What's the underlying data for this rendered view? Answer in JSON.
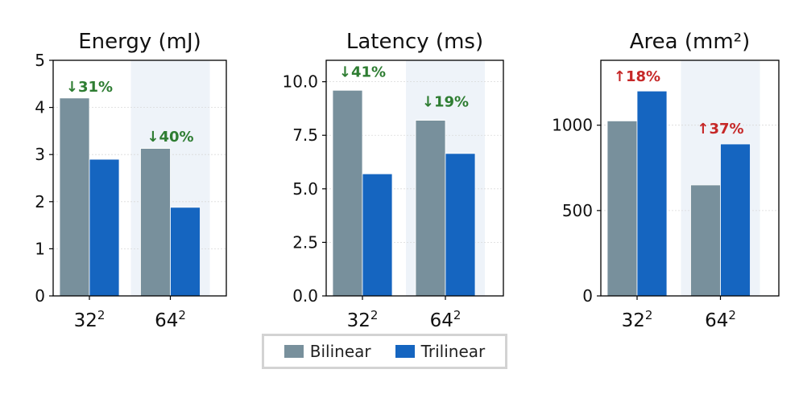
{
  "chart_data": [
    {
      "type": "bar",
      "title": "Energy (mJ)",
      "categories": [
        {
          "base": "32",
          "sup": "2"
        },
        {
          "base": "64",
          "sup": "2"
        }
      ],
      "series": [
        {
          "name": "Bilinear",
          "values": [
            4.2,
            3.13
          ]
        },
        {
          "name": "Trilinear",
          "values": [
            2.9,
            1.88
          ]
        }
      ],
      "ylim": [
        0,
        5
      ],
      "yticks": [
        0,
        1,
        2,
        3,
        4,
        5
      ],
      "ytick_labels": [
        "0",
        "1",
        "2",
        "3",
        "4",
        "5"
      ],
      "annotations": [
        {
          "category": 0,
          "text": "↓31%",
          "y": 4.45,
          "direction": "down"
        },
        {
          "category": 1,
          "text": "↓40%",
          "y": 3.4,
          "direction": "down"
        }
      ],
      "grid": true,
      "highlight_category": 1
    },
    {
      "type": "bar",
      "title": "Latency (ms)",
      "categories": [
        {
          "base": "32",
          "sup": "2"
        },
        {
          "base": "64",
          "sup": "2"
        }
      ],
      "series": [
        {
          "name": "Bilinear",
          "values": [
            9.6,
            8.2
          ]
        },
        {
          "name": "Trilinear",
          "values": [
            5.7,
            6.65
          ]
        }
      ],
      "ylim": [
        0,
        11
      ],
      "yticks": [
        0,
        2.5,
        5,
        7.5,
        10
      ],
      "ytick_labels": [
        "0.0",
        "2.5",
        "5.0",
        "7.5",
        "10.0"
      ],
      "annotations": [
        {
          "category": 0,
          "text": "↓41%",
          "y": 10.5,
          "direction": "down"
        },
        {
          "category": 1,
          "text": "↓19%",
          "y": 9.1,
          "direction": "down"
        }
      ],
      "grid": true,
      "highlight_category": 1
    },
    {
      "type": "bar",
      "title": "Area (mm²)",
      "categories": [
        {
          "base": "32",
          "sup": "2"
        },
        {
          "base": "64",
          "sup": "2"
        }
      ],
      "series": [
        {
          "name": "Bilinear",
          "values": [
            1025,
            650
          ]
        },
        {
          "name": "Trilinear",
          "values": [
            1200,
            890
          ]
        }
      ],
      "ylim": [
        0,
        1380
      ],
      "yticks": [
        0,
        500,
        1000
      ],
      "ytick_labels": [
        "0",
        "500",
        "1000"
      ],
      "annotations": [
        {
          "category": 0,
          "text": "↑18%",
          "y": 1290,
          "direction": "up"
        },
        {
          "category": 1,
          "text": "↑37%",
          "y": 985,
          "direction": "up"
        }
      ],
      "grid": true,
      "highlight_category": 1
    }
  ],
  "legend": {
    "placement": "bottom-center",
    "items": [
      {
        "label": "Bilinear",
        "color": "#78909c"
      },
      {
        "label": "Trilinear",
        "color": "#1565c0"
      }
    ]
  },
  "colors": {
    "bilinear": "#78909c",
    "trilinear": "#1565c0",
    "decrease": "#2e7d32",
    "increase": "#c62828",
    "highlight_band": "#eef3f9",
    "grid": "#d9d9d9"
  }
}
